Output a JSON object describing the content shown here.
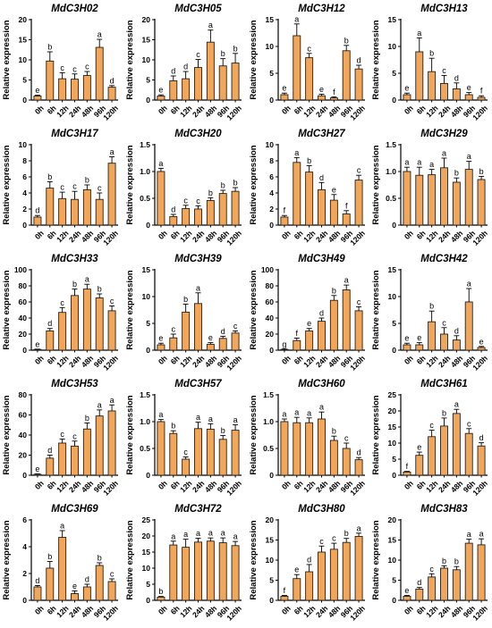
{
  "categories": [
    "0h",
    "6h",
    "12h",
    "24h",
    "48h",
    "96h",
    "120h"
  ],
  "ylabel": "Relative expression",
  "bar_color": "#F2A65A",
  "bar_stroke": "#222222",
  "chart_data": [
    {
      "type": "bar",
      "title": "MdC3H02",
      "ylim": [
        0,
        20
      ],
      "yticks": [
        0,
        5,
        10,
        15,
        20
      ],
      "values": [
        1,
        9.7,
        5.3,
        5.2,
        6.1,
        13.1,
        3.2
      ],
      "errors": [
        0.2,
        2.3,
        1.5,
        1.3,
        1.0,
        2.0,
        0.4
      ],
      "letters": [
        "e",
        "b",
        "c",
        "c",
        "c",
        "a",
        "d"
      ]
    },
    {
      "type": "bar",
      "title": "MdC3H05",
      "ylim": [
        0,
        20
      ],
      "yticks": [
        0,
        5,
        10,
        15,
        20
      ],
      "values": [
        1,
        4.8,
        5.3,
        8.1,
        14.4,
        8.5,
        9.2
      ],
      "errors": [
        0.3,
        1.2,
        1.8,
        2.0,
        3.0,
        1.8,
        2.4
      ],
      "letters": [
        "e",
        "d",
        "d",
        "c",
        "a",
        "b",
        "b"
      ]
    },
    {
      "type": "bar",
      "title": "MdC3H12",
      "ylim": [
        0,
        15
      ],
      "yticks": [
        0,
        5,
        10,
        15
      ],
      "values": [
        1,
        12,
        7.9,
        0.8,
        0.4,
        9.2,
        5.8
      ],
      "errors": [
        0.3,
        2.2,
        0.8,
        0.3,
        0.2,
        1.0,
        0.7
      ],
      "letters": [
        "e",
        "a",
        "c",
        "e",
        "f",
        "b",
        "d"
      ]
    },
    {
      "type": "bar",
      "title": "MdC3H13",
      "ylim": [
        0,
        15
      ],
      "yticks": [
        0,
        5,
        10,
        15
      ],
      "values": [
        1,
        9,
        5.3,
        3.1,
        2.1,
        1,
        0.5
      ],
      "errors": [
        0.3,
        2.6,
        2.5,
        1.5,
        1.1,
        0.4,
        0.3
      ],
      "letters": [
        "e",
        "a",
        "b",
        "c",
        "d",
        "e",
        "f"
      ]
    },
    {
      "type": "bar",
      "title": "MdC3H17",
      "ylim": [
        0,
        10
      ],
      "yticks": [
        0,
        2,
        4,
        6,
        8,
        10
      ],
      "values": [
        1,
        4.6,
        3.3,
        3.2,
        4.4,
        3.2,
        7.7
      ],
      "errors": [
        0.2,
        0.8,
        0.8,
        1.0,
        0.6,
        0.8,
        0.8
      ],
      "letters": [
        "d",
        "b",
        "c",
        "c",
        "b",
        "c",
        "a"
      ]
    },
    {
      "type": "bar",
      "title": "MdC3H20",
      "ylim": [
        0,
        1.5
      ],
      "yticks": [
        0,
        0.5,
        1.0,
        1.5
      ],
      "values": [
        1,
        0.16,
        0.31,
        0.3,
        0.46,
        0.59,
        0.63
      ],
      "errors": [
        0.06,
        0.04,
        0.06,
        0.06,
        0.05,
        0.06,
        0.07
      ],
      "letters": [
        "a",
        "d",
        "c",
        "c",
        "b",
        "b",
        "b"
      ]
    },
    {
      "type": "bar",
      "title": "MdC3H27",
      "ylim": [
        0,
        10
      ],
      "yticks": [
        0,
        2,
        4,
        6,
        8,
        10
      ],
      "values": [
        1,
        7.8,
        6.6,
        4.4,
        3.1,
        1.4,
        5.6
      ],
      "errors": [
        0.2,
        0.6,
        0.8,
        0.9,
        0.7,
        0.4,
        0.6
      ],
      "letters": [
        "f",
        "a",
        "b",
        "d",
        "e",
        "f",
        "c"
      ]
    },
    {
      "type": "bar",
      "title": "MdC3H29",
      "ylim": [
        0,
        1.5
      ],
      "yticks": [
        0,
        0.5,
        1.0,
        1.5
      ],
      "values": [
        1,
        0.93,
        0.94,
        1.07,
        0.8,
        1.04,
        0.85
      ],
      "errors": [
        0.08,
        0.15,
        0.1,
        0.18,
        0.08,
        0.15,
        0.06
      ],
      "letters": [
        "a",
        "a",
        "a",
        "a",
        "b",
        "a",
        "b"
      ]
    },
    {
      "type": "bar",
      "title": "MdC3H33",
      "ylim": [
        0,
        100
      ],
      "yticks": [
        0,
        20,
        40,
        60,
        80,
        100
      ],
      "values": [
        1,
        24,
        47,
        68,
        76,
        65,
        49
      ],
      "errors": [
        0.3,
        3,
        6,
        8,
        6,
        5,
        6
      ],
      "letters": [
        "e",
        "d",
        "c",
        "b",
        "a",
        "b",
        "c"
      ]
    },
    {
      "type": "bar",
      "title": "MdC3H39",
      "ylim": [
        0,
        15
      ],
      "yticks": [
        0,
        5,
        10,
        15
      ],
      "values": [
        1,
        2.3,
        7.1,
        8.7,
        1.1,
        2.2,
        3.2
      ],
      "errors": [
        0.3,
        0.7,
        1.5,
        2.0,
        0.3,
        0.4,
        0.4
      ],
      "letters": [
        "e",
        "c",
        "b",
        "a",
        "e",
        "d",
        "c"
      ]
    },
    {
      "type": "bar",
      "title": "MdC3H49",
      "ylim": [
        0,
        100
      ],
      "yticks": [
        0,
        20,
        40,
        60,
        80,
        100
      ],
      "values": [
        1,
        12,
        24,
        36,
        62,
        75,
        49
      ],
      "errors": [
        0.3,
        3,
        3,
        4,
        6,
        6,
        5
      ],
      "letters": [
        "g",
        "f",
        "e",
        "d",
        "b",
        "a",
        "c"
      ]
    },
    {
      "type": "bar",
      "title": "MdC3H42",
      "ylim": [
        0,
        15
      ],
      "yticks": [
        0,
        5,
        10,
        15
      ],
      "values": [
        1,
        1,
        5.3,
        3,
        1.9,
        9,
        0.5
      ],
      "errors": [
        0.3,
        0.4,
        2.0,
        1.2,
        0.8,
        2.5,
        0.2
      ],
      "letters": [
        "e",
        "e",
        "b",
        "c",
        "d",
        "a",
        "e"
      ]
    },
    {
      "type": "bar",
      "title": "MdC3H53",
      "ylim": [
        0,
        80
      ],
      "yticks": [
        0,
        20,
        40,
        60,
        80
      ],
      "values": [
        1,
        17,
        32,
        29,
        46,
        59,
        64
      ],
      "errors": [
        0.3,
        3,
        4,
        5,
        6,
        6,
        6
      ],
      "letters": [
        "e",
        "d",
        "c",
        "c",
        "b",
        "a",
        "a"
      ]
    },
    {
      "type": "bar",
      "title": "MdC3H57",
      "ylim": [
        0,
        1.5
      ],
      "yticks": [
        0,
        0.5,
        1.0,
        1.5
      ],
      "values": [
        1,
        0.78,
        0.3,
        0.87,
        0.86,
        0.67,
        0.84
      ],
      "errors": [
        0.04,
        0.05,
        0.04,
        0.12,
        0.1,
        0.07,
        0.1
      ],
      "letters": [
        "a",
        "b",
        "c",
        "a",
        "a",
        "b",
        "a"
      ]
    },
    {
      "type": "bar",
      "title": "MdC3H60",
      "ylim": [
        0,
        1.5
      ],
      "yticks": [
        0,
        0.5,
        1.0,
        1.5
      ],
      "values": [
        1,
        0.98,
        0.98,
        1.05,
        0.65,
        0.5,
        0.29
      ],
      "errors": [
        0.05,
        0.1,
        0.09,
        0.13,
        0.08,
        0.1,
        0.04
      ],
      "letters": [
        "a",
        "a",
        "a",
        "a",
        "b",
        "c",
        "d"
      ]
    },
    {
      "type": "bar",
      "title": "MdC3H61",
      "ylim": [
        0,
        25
      ],
      "yticks": [
        0,
        5,
        10,
        15,
        20,
        25
      ],
      "values": [
        1,
        6.2,
        12,
        15.3,
        19.2,
        13,
        9.1
      ],
      "errors": [
        0.2,
        1.0,
        2.0,
        2.5,
        1.3,
        1.5,
        1.0
      ],
      "letters": [
        "f",
        "e",
        "c",
        "b",
        "a",
        "c",
        "d"
      ]
    },
    {
      "type": "bar",
      "title": "MdC3H69",
      "ylim": [
        0,
        6
      ],
      "yticks": [
        0,
        2,
        4,
        6
      ],
      "values": [
        1,
        2.4,
        4.7,
        0.5,
        1,
        2.6,
        1.4
      ],
      "errors": [
        0.1,
        0.5,
        0.5,
        0.2,
        0.2,
        0.2,
        0.2
      ],
      "letters": [
        "d",
        "b",
        "a",
        "e",
        "d",
        "b",
        "c"
      ]
    },
    {
      "type": "bar",
      "title": "MdC3H72",
      "ylim": [
        0,
        25
      ],
      "yticks": [
        0,
        5,
        10,
        15,
        20,
        25
      ],
      "values": [
        1,
        17.2,
        16.5,
        18.1,
        18.4,
        17.9,
        17
      ],
      "errors": [
        0.2,
        1.2,
        2.5,
        1.2,
        1.0,
        1.5,
        1.3
      ],
      "letters": [
        "b",
        "a",
        "a",
        "a",
        "a",
        "a",
        "a"
      ]
    },
    {
      "type": "bar",
      "title": "MdC3H80",
      "ylim": [
        0,
        20
      ],
      "yticks": [
        0,
        5,
        10,
        15,
        20
      ],
      "values": [
        1,
        5.4,
        7.1,
        12,
        12.7,
        14.4,
        15.9
      ],
      "errors": [
        0.2,
        1.0,
        1.8,
        1.5,
        1.5,
        1.0,
        0.8
      ],
      "letters": [
        "f",
        "e",
        "d",
        "c",
        "c",
        "b",
        "a"
      ]
    },
    {
      "type": "bar",
      "title": "MdC3H83",
      "ylim": [
        0,
        20
      ],
      "yticks": [
        0,
        5,
        10,
        15,
        20
      ],
      "values": [
        1,
        2.8,
        5.8,
        8,
        7.6,
        14.2,
        13.8
      ],
      "errors": [
        0.2,
        0.4,
        0.8,
        0.6,
        0.8,
        1.0,
        1.5
      ],
      "letters": [
        "e",
        "d",
        "c",
        "b",
        "b",
        "a",
        "a"
      ]
    }
  ]
}
